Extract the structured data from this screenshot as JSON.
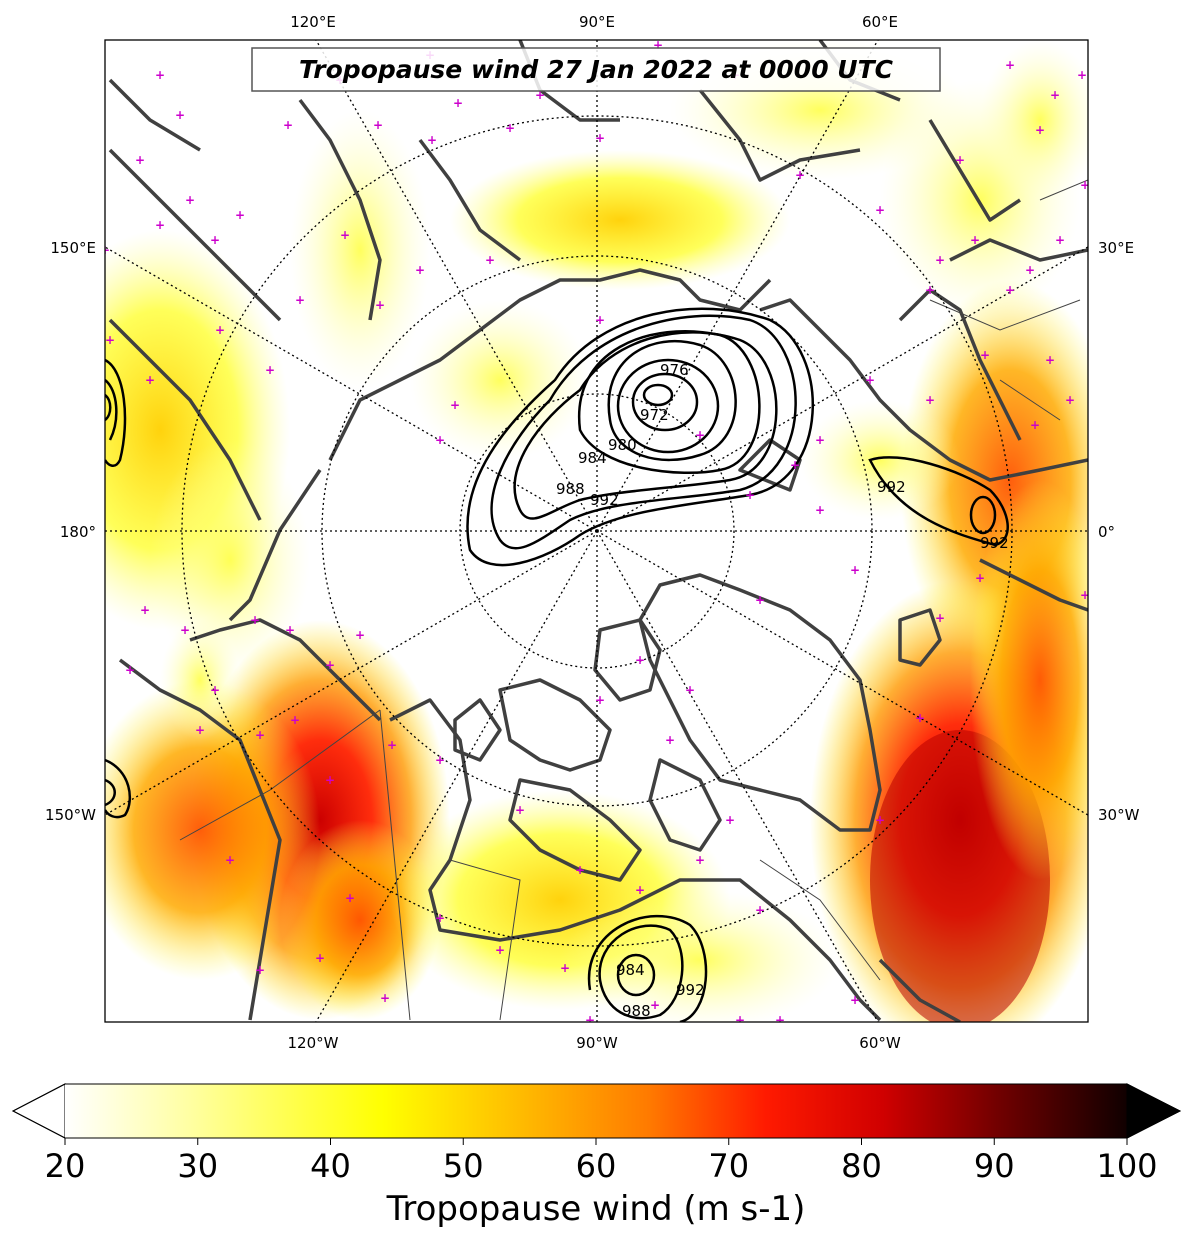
{
  "title": "Tropopause wind 27 Jan 2022 at 0000 UTC",
  "colorbar": {
    "label": "Tropopause wind (m s-1)",
    "ticks": [
      "20",
      "30",
      "40",
      "50",
      "60",
      "70",
      "80",
      "90",
      "100"
    ],
    "min": 20,
    "max": 100,
    "extend": "both",
    "colormap": [
      "#ffffff",
      "#ffff99",
      "#ffff00",
      "#ffcc00",
      "#ff8800",
      "#ff3300",
      "#ff0000",
      "#cc0000",
      "#880000",
      "#330000",
      "#000000"
    ]
  },
  "longitude_labels": {
    "top": [
      "120°E",
      "90°E",
      "60°E"
    ],
    "bottom": [
      "120°W",
      "90°W",
      "60°W"
    ],
    "left": [
      "150°E",
      "180°",
      "150°W"
    ],
    "right": [
      "30°E",
      "0°",
      "30°W"
    ]
  },
  "pressure_contour_labels": [
    "976",
    "972",
    "980",
    "984",
    "988",
    "992",
    "992",
    "992",
    "984",
    "992",
    "988"
  ],
  "colors": {
    "coast": "#404040",
    "contour": "#000000",
    "markers": "#cc00cc",
    "grid": "#000000"
  }
}
